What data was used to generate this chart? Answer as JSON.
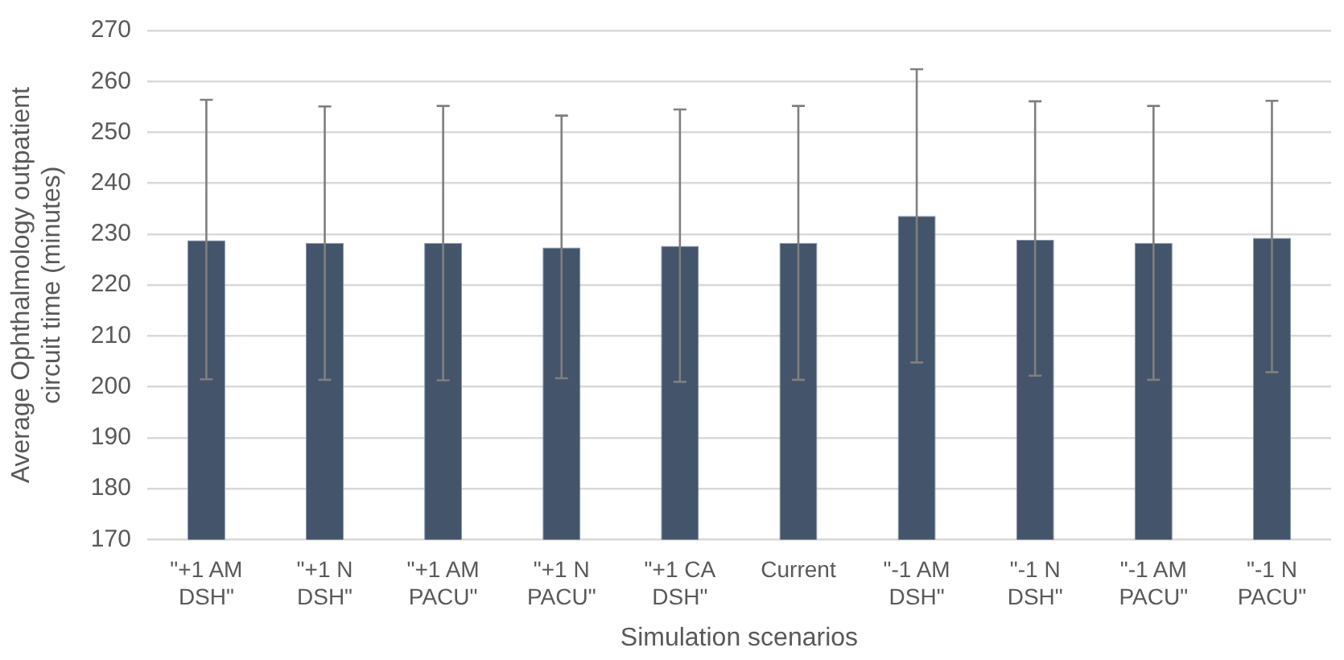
{
  "chart_data": {
    "type": "bar",
    "xlabel": "Simulation scenarios",
    "ylabel": "Average Ophthalmology outpatient circuit time (minutes)",
    "categories": [
      "\"+1 AM DSH\"",
      "\"+1 N DSH\"",
      "\"+1 AM PACU\"",
      "\"+1 N PACU\"",
      "\"+1 CA DSH\"",
      "Current",
      "\"-1 AM DSH\"",
      "\"-1 N DSH\"",
      "\"-1 AM PACU\"",
      "\"-1 N PACU\""
    ],
    "values": [
      228.8,
      228.3,
      228.3,
      227.4,
      227.7,
      228.3,
      233.6,
      228.9,
      228.3,
      229.3
    ],
    "errors": [
      [
        201.5,
        256.4
      ],
      [
        201.4,
        255.1
      ],
      [
        201.3,
        255.2
      ],
      [
        201.7,
        253.3
      ],
      [
        201.0,
        254.5
      ],
      [
        201.4,
        255.2
      ],
      [
        204.8,
        262.4
      ],
      [
        202.2,
        256.1
      ],
      [
        201.4,
        255.2
      ],
      [
        202.9,
        256.2
      ]
    ],
    "color": "#44546a",
    "ylim": [
      170,
      270
    ],
    "yticks": [
      170,
      180,
      190,
      200,
      210,
      220,
      230,
      240,
      250,
      260,
      270
    ],
    "grid": "y",
    "legend": false
  }
}
